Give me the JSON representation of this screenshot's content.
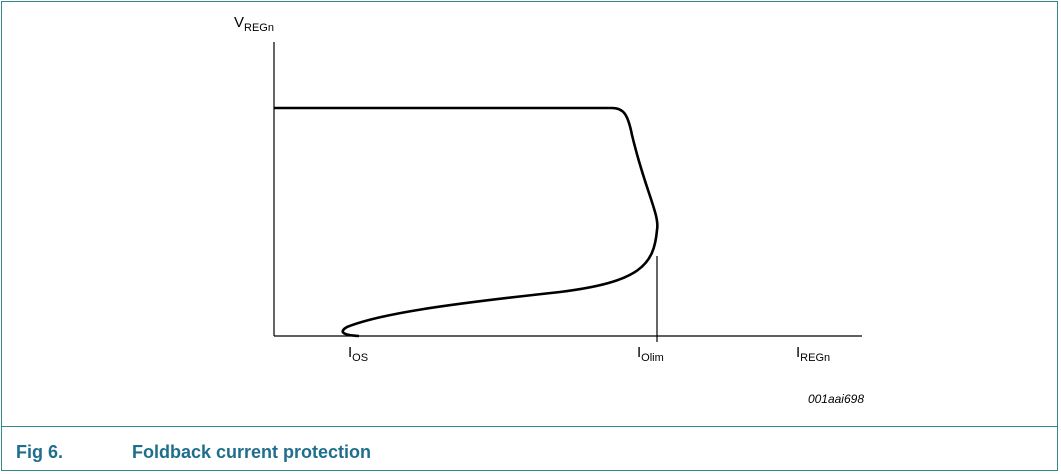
{
  "figure": {
    "number_label": "Fig 6.",
    "title": "Foldback current protection",
    "code": "001aai698"
  },
  "axes": {
    "y": {
      "main": "V",
      "sub": "REGn"
    },
    "x": {
      "main": "I",
      "sub": "REGn"
    }
  },
  "markers": {
    "ios": {
      "main": "I",
      "sub": "OS"
    },
    "iolim": {
      "main": "I",
      "sub": "Olim"
    }
  },
  "colors": {
    "frame": "#2f8a8a",
    "caption": "#1f6e8c",
    "curve": "#000000"
  }
}
